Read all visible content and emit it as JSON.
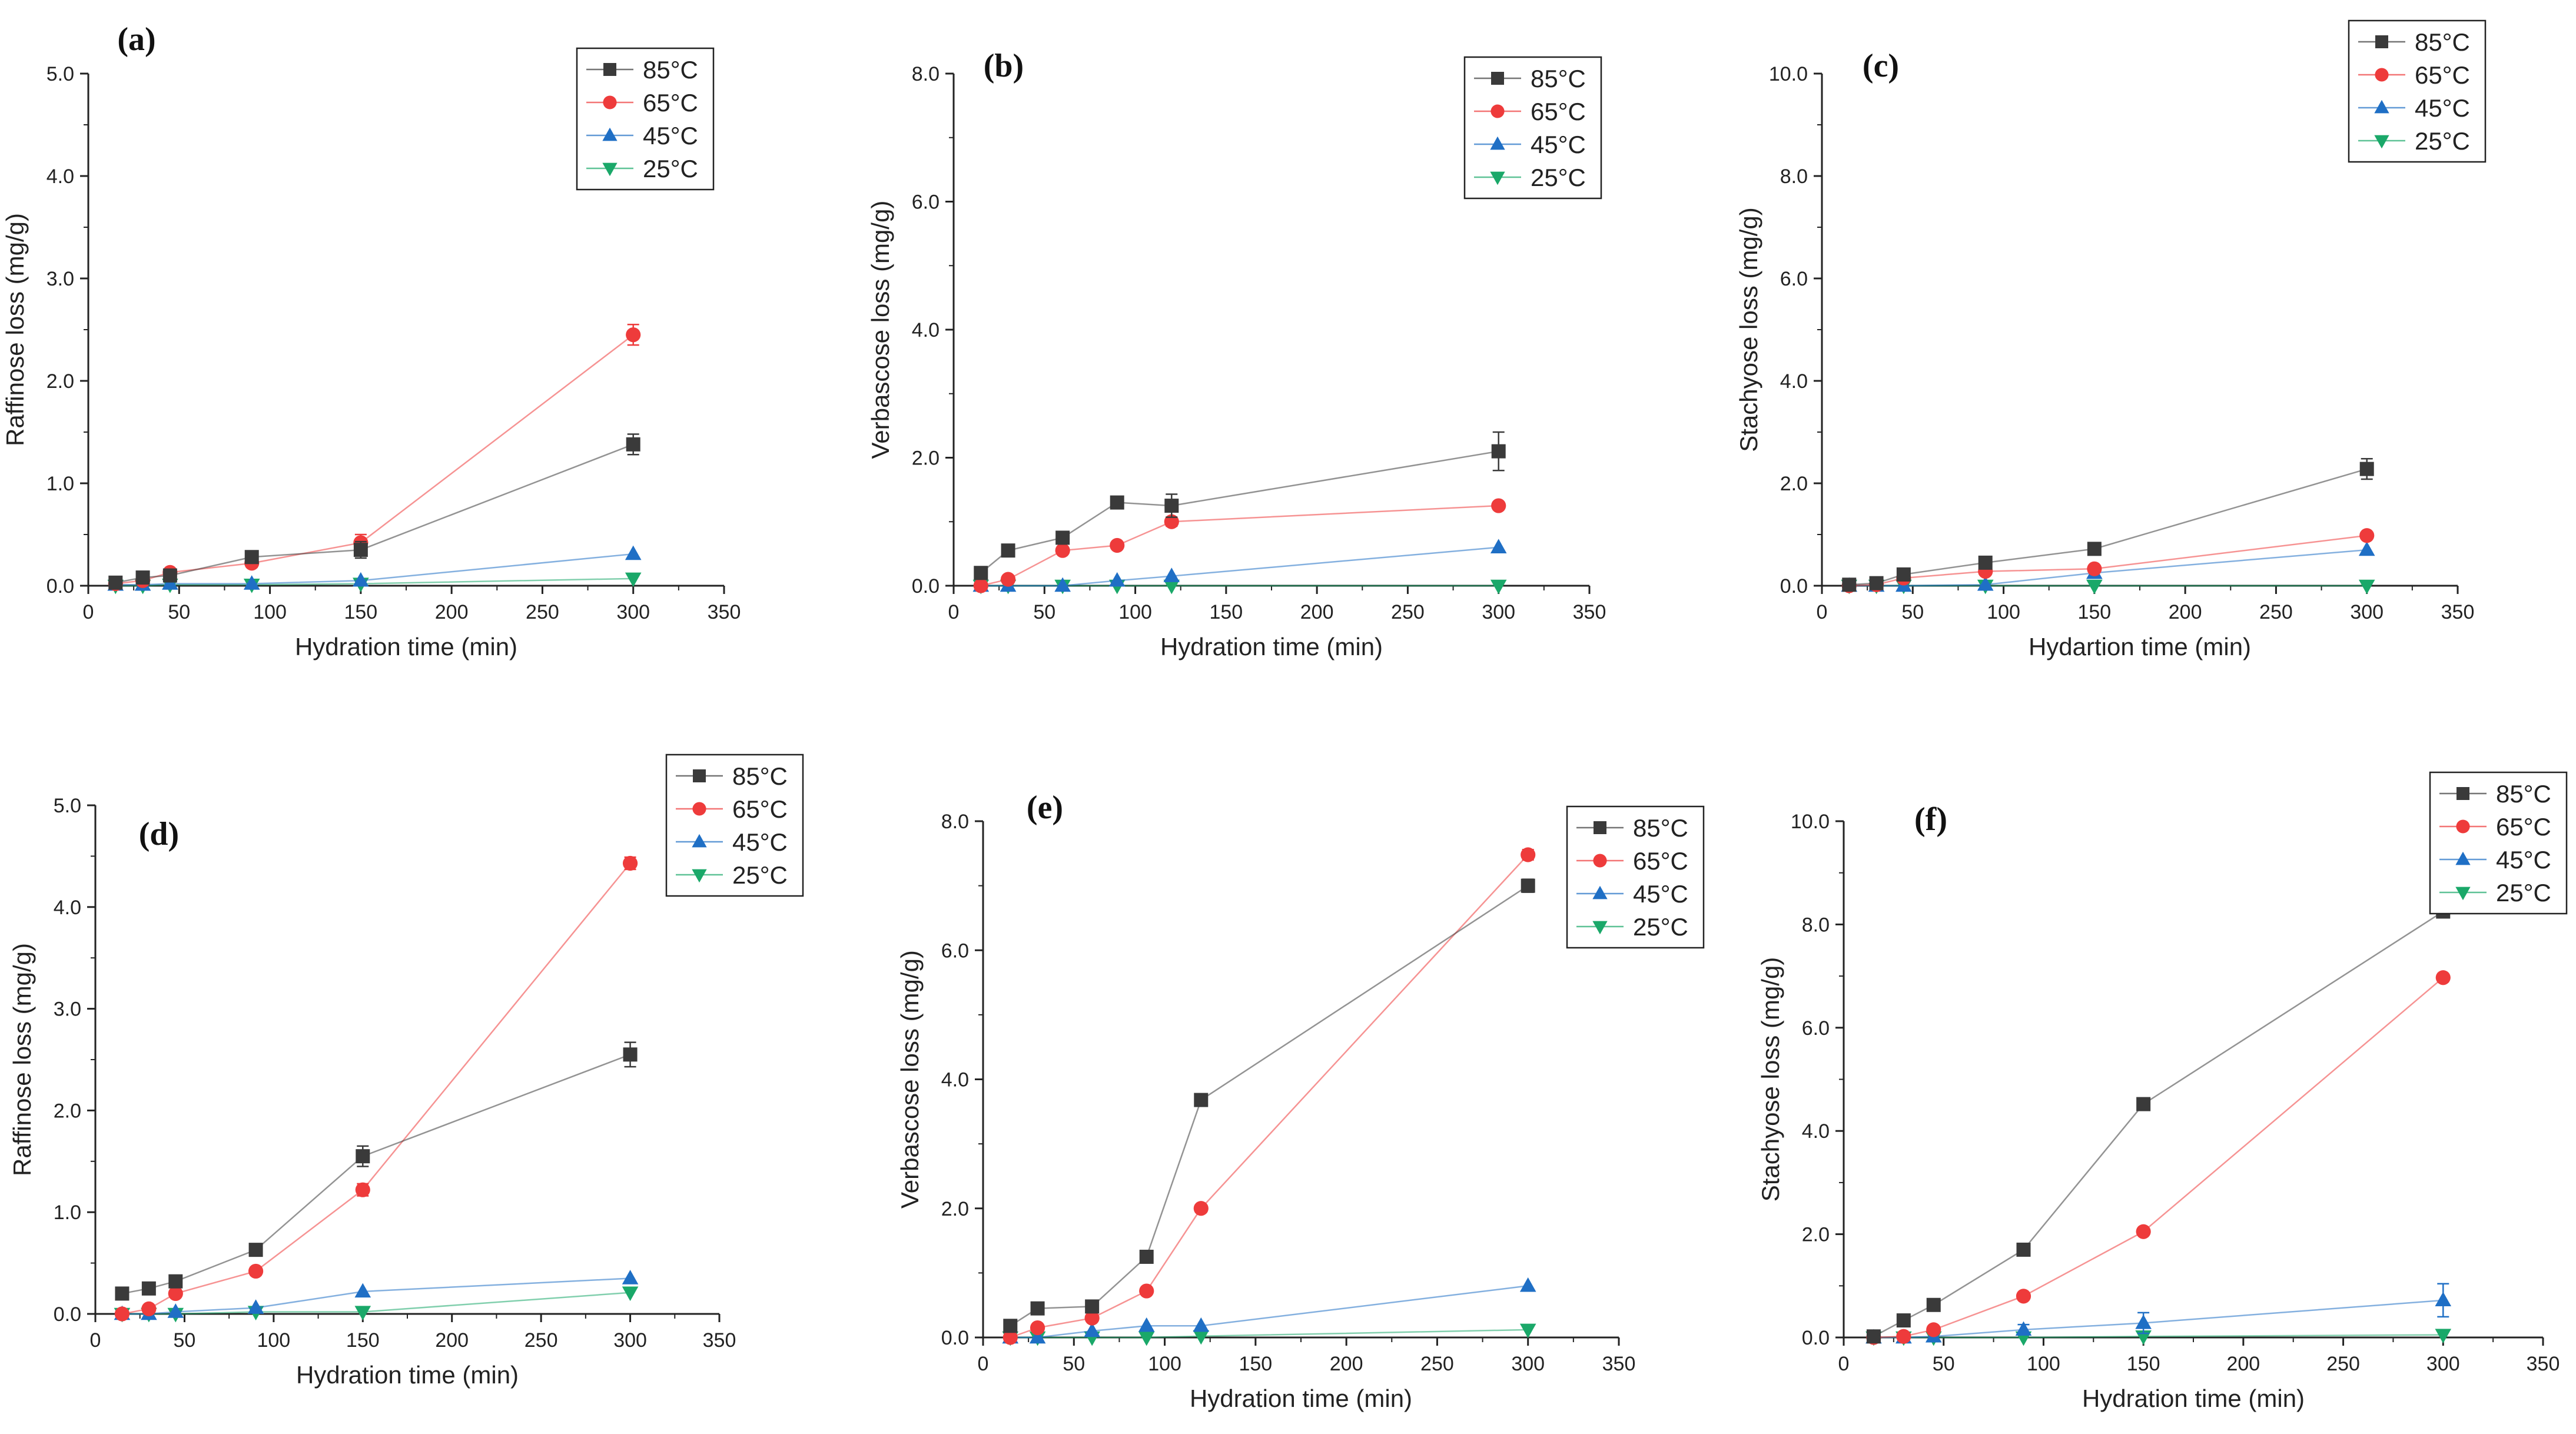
{
  "figure": {
    "background": "#ffffff"
  },
  "series_styles": [
    {
      "name": "85°C",
      "color": "#3a3a3a",
      "marker": "square"
    },
    {
      "name": "65°C",
      "color": "#ee3b3b",
      "marker": "circle"
    },
    {
      "name": "45°C",
      "color": "#1f6fc5",
      "marker": "triangle-up"
    },
    {
      "name": "25°C",
      "color": "#1aa869",
      "marker": "triangle-down"
    }
  ],
  "chart_data": [
    {
      "id": "a",
      "type": "line",
      "panel_label": "(a)",
      "xlabel": "Hydration time (min)",
      "ylabel": "Raffinose loss (mg/g)",
      "xlim": [
        0,
        350
      ],
      "ylim": [
        0,
        5.0
      ],
      "xticks": [
        0,
        50,
        100,
        150,
        200,
        250,
        300,
        350
      ],
      "yticks": [
        "0.0",
        "1.0",
        "2.0",
        "3.0",
        "4.0",
        "5.0"
      ],
      "legend_position": "top-right",
      "series": [
        {
          "name": "85°C",
          "x": [
            15,
            30,
            45,
            90,
            150,
            300
          ],
          "y": [
            0.03,
            0.08,
            0.1,
            0.28,
            0.35,
            1.38
          ],
          "err": [
            0.02,
            0.02,
            0.03,
            0.04,
            0.08,
            0.1
          ]
        },
        {
          "name": "65°C",
          "x": [
            15,
            30,
            45,
            90,
            150,
            300
          ],
          "y": [
            0.02,
            0.05,
            0.13,
            0.22,
            0.42,
            2.45
          ],
          "err": [
            0.02,
            0.02,
            0.03,
            0.04,
            0.08,
            0.1
          ]
        },
        {
          "name": "45°C",
          "x": [
            15,
            30,
            45,
            90,
            150,
            300
          ],
          "y": [
            0.01,
            0.01,
            0.02,
            0.02,
            0.05,
            0.31
          ],
          "err": [
            0,
            0,
            0,
            0,
            0,
            0
          ]
        },
        {
          "name": "25°C",
          "x": [
            15,
            30,
            45,
            90,
            150,
            300
          ],
          "y": [
            0.0,
            0.0,
            0.01,
            0.01,
            0.02,
            0.07
          ],
          "err": [
            0,
            0,
            0,
            0,
            0,
            0
          ]
        }
      ]
    },
    {
      "id": "b",
      "type": "line",
      "panel_label": "(b)",
      "xlabel": "Hydration time (min)",
      "ylabel": "Verbascose loss (mg/g)",
      "xlim": [
        0,
        350
      ],
      "ylim": [
        0,
        8.0
      ],
      "xticks": [
        0,
        50,
        100,
        150,
        200,
        250,
        300,
        350
      ],
      "yticks": [
        "0.0",
        "2.0",
        "4.0",
        "6.0",
        "8.0"
      ],
      "legend_position": "top-right",
      "series": [
        {
          "name": "85°C",
          "x": [
            15,
            30,
            60,
            90,
            120,
            300
          ],
          "y": [
            0.2,
            0.55,
            0.75,
            1.3,
            1.25,
            2.1
          ],
          "err": [
            0.03,
            0.05,
            0.06,
            0.07,
            0.18,
            0.3
          ]
        },
        {
          "name": "65°C",
          "x": [
            15,
            30,
            60,
            90,
            120,
            300
          ],
          "y": [
            0.0,
            0.1,
            0.55,
            0.63,
            1.0,
            1.25
          ],
          "err": [
            0,
            0.03,
            0.05,
            0.05,
            0.07,
            0.06
          ]
        },
        {
          "name": "45°C",
          "x": [
            15,
            30,
            60,
            90,
            120,
            300
          ],
          "y": [
            0.0,
            0.0,
            0.0,
            0.08,
            0.15,
            0.6
          ],
          "err": [
            0,
            0,
            0,
            0,
            0,
            0
          ]
        },
        {
          "name": "25°C",
          "x": [
            15,
            30,
            60,
            90,
            120,
            300
          ],
          "y": [
            0.0,
            0.0,
            0.0,
            0.0,
            0.0,
            0.0
          ],
          "err": [
            0,
            0,
            0,
            0,
            0,
            0
          ]
        }
      ]
    },
    {
      "id": "c",
      "type": "line",
      "panel_label": "(c)",
      "xlabel": "Hydartion time (min)",
      "ylabel": "Stachyose loss (mg/g)",
      "xlim": [
        0,
        350
      ],
      "ylim": [
        0,
        10.0
      ],
      "xticks": [
        0,
        50,
        100,
        150,
        200,
        250,
        300,
        350
      ],
      "yticks": [
        "0.0",
        "2.0",
        "4.0",
        "6.0",
        "8.0",
        "10.0"
      ],
      "legend_position": "top-right",
      "series": [
        {
          "name": "85°C",
          "x": [
            15,
            30,
            45,
            90,
            150,
            300
          ],
          "y": [
            0.02,
            0.05,
            0.22,
            0.45,
            0.72,
            2.28
          ],
          "err": [
            0.02,
            0.02,
            0.04,
            0.05,
            0.06,
            0.2
          ]
        },
        {
          "name": "65°C",
          "x": [
            15,
            30,
            45,
            90,
            150,
            300
          ],
          "y": [
            0.0,
            0.02,
            0.15,
            0.28,
            0.33,
            0.98
          ],
          "err": [
            0,
            0,
            0.03,
            0.04,
            0.04,
            0.05
          ]
        },
        {
          "name": "45°C",
          "x": [
            15,
            30,
            45,
            90,
            150,
            300
          ],
          "y": [
            0.0,
            0.0,
            0.0,
            0.02,
            0.25,
            0.7
          ],
          "err": [
            0,
            0,
            0,
            0,
            0,
            0
          ]
        },
        {
          "name": "25°C",
          "x": [
            15,
            30,
            45,
            90,
            150,
            300
          ],
          "y": [
            0.0,
            0.0,
            0.0,
            0.0,
            0.0,
            0.0
          ],
          "err": [
            0,
            0,
            0,
            0,
            0,
            0
          ]
        }
      ]
    },
    {
      "id": "d",
      "type": "line",
      "panel_label": "(d)",
      "xlabel": "Hydration time (min)",
      "ylabel": "Raffinose loss (mg/g)",
      "xlim": [
        0,
        350
      ],
      "ylim": [
        0,
        5.0
      ],
      "xticks": [
        0,
        50,
        100,
        150,
        200,
        250,
        300,
        350
      ],
      "yticks": [
        "0.0",
        "1.0",
        "2.0",
        "3.0",
        "4.0",
        "5.0"
      ],
      "legend_position": "top-right",
      "series": [
        {
          "name": "85°C",
          "x": [
            15,
            30,
            45,
            90,
            150,
            300
          ],
          "y": [
            0.2,
            0.25,
            0.32,
            0.63,
            1.55,
            2.55
          ],
          "err": [
            0.03,
            0.03,
            0.04,
            0.05,
            0.1,
            0.12
          ]
        },
        {
          "name": "65°C",
          "x": [
            15,
            30,
            45,
            90,
            150,
            300
          ],
          "y": [
            0.0,
            0.05,
            0.2,
            0.42,
            1.22,
            4.43
          ],
          "err": [
            0,
            0.02,
            0.03,
            0.04,
            0.06,
            0.06
          ]
        },
        {
          "name": "45°C",
          "x": [
            15,
            30,
            45,
            90,
            150,
            300
          ],
          "y": [
            0.0,
            0.0,
            0.02,
            0.06,
            0.22,
            0.35
          ],
          "err": [
            0,
            0,
            0,
            0,
            0,
            0
          ]
        },
        {
          "name": "25°C",
          "x": [
            15,
            30,
            45,
            90,
            150,
            300
          ],
          "y": [
            0.0,
            0.0,
            0.0,
            0.02,
            0.02,
            0.21
          ],
          "err": [
            0,
            0,
            0,
            0,
            0,
            0
          ]
        }
      ]
    },
    {
      "id": "e",
      "type": "line",
      "panel_label": "(e)",
      "xlabel": "Hydration time (min)",
      "ylabel": "Verbascose loss (mg/g)",
      "xlim": [
        0,
        350
      ],
      "ylim": [
        0,
        8.0
      ],
      "xticks": [
        0,
        50,
        100,
        150,
        200,
        250,
        300,
        350
      ],
      "yticks": [
        "0.0",
        "2.0",
        "4.0",
        "6.0",
        "8.0"
      ],
      "legend_position": "top-right",
      "series": [
        {
          "name": "85°C",
          "x": [
            15,
            30,
            60,
            90,
            120,
            300
          ],
          "y": [
            0.18,
            0.45,
            0.48,
            1.25,
            3.68,
            7.0
          ],
          "err": [
            0.03,
            0.04,
            0.05,
            0.06,
            0.08,
            0.1
          ]
        },
        {
          "name": "65°C",
          "x": [
            15,
            30,
            60,
            90,
            120,
            300
          ],
          "y": [
            0.0,
            0.15,
            0.3,
            0.72,
            2.0,
            7.48
          ],
          "err": [
            0,
            0.03,
            0.04,
            0.05,
            0.06,
            0.08
          ]
        },
        {
          "name": "45°C",
          "x": [
            15,
            30,
            60,
            90,
            120,
            300
          ],
          "y": [
            0.0,
            0.0,
            0.1,
            0.18,
            0.18,
            0.8
          ],
          "err": [
            0,
            0,
            0,
            0,
            0,
            0
          ]
        },
        {
          "name": "25°C",
          "x": [
            15,
            30,
            60,
            90,
            120,
            300
          ],
          "y": [
            0.0,
            0.0,
            0.0,
            0.0,
            0.02,
            0.12
          ],
          "err": [
            0,
            0,
            0,
            0,
            0,
            0
          ]
        }
      ]
    },
    {
      "id": "f",
      "type": "line",
      "panel_label": "(f)",
      "xlabel": "Hydration time (min)",
      "ylabel": "Stachyose loss (mg/g)",
      "xlim": [
        0,
        350
      ],
      "ylim": [
        0,
        10.0
      ],
      "xticks": [
        0,
        50,
        100,
        150,
        200,
        250,
        300,
        350
      ],
      "yticks": [
        "0.0",
        "2.0",
        "4.0",
        "6.0",
        "8.0",
        "10.0"
      ],
      "legend_position": "top-right",
      "series": [
        {
          "name": "85°C",
          "x": [
            15,
            30,
            45,
            90,
            150,
            300
          ],
          "y": [
            0.02,
            0.33,
            0.63,
            1.7,
            4.52,
            8.25
          ],
          "err": [
            0.02,
            0.03,
            0.04,
            0.06,
            0.08,
            0.1
          ]
        },
        {
          "name": "65°C",
          "x": [
            15,
            30,
            45,
            90,
            150,
            300
          ],
          "y": [
            0.0,
            0.02,
            0.15,
            0.8,
            2.05,
            6.97
          ],
          "err": [
            0,
            0,
            0.03,
            0.04,
            0.06,
            0.08
          ]
        },
        {
          "name": "45°C",
          "x": [
            15,
            30,
            45,
            90,
            150,
            300
          ],
          "y": [
            0.0,
            0.0,
            0.02,
            0.15,
            0.28,
            0.72
          ],
          "err": [
            0,
            0,
            0,
            0.1,
            0.2,
            0.32
          ]
        },
        {
          "name": "25°C",
          "x": [
            15,
            30,
            45,
            90,
            150,
            300
          ],
          "y": [
            0.0,
            0.0,
            0.0,
            0.0,
            0.02,
            0.05
          ],
          "err": [
            0,
            0,
            0,
            0,
            0,
            0
          ]
        }
      ]
    }
  ]
}
